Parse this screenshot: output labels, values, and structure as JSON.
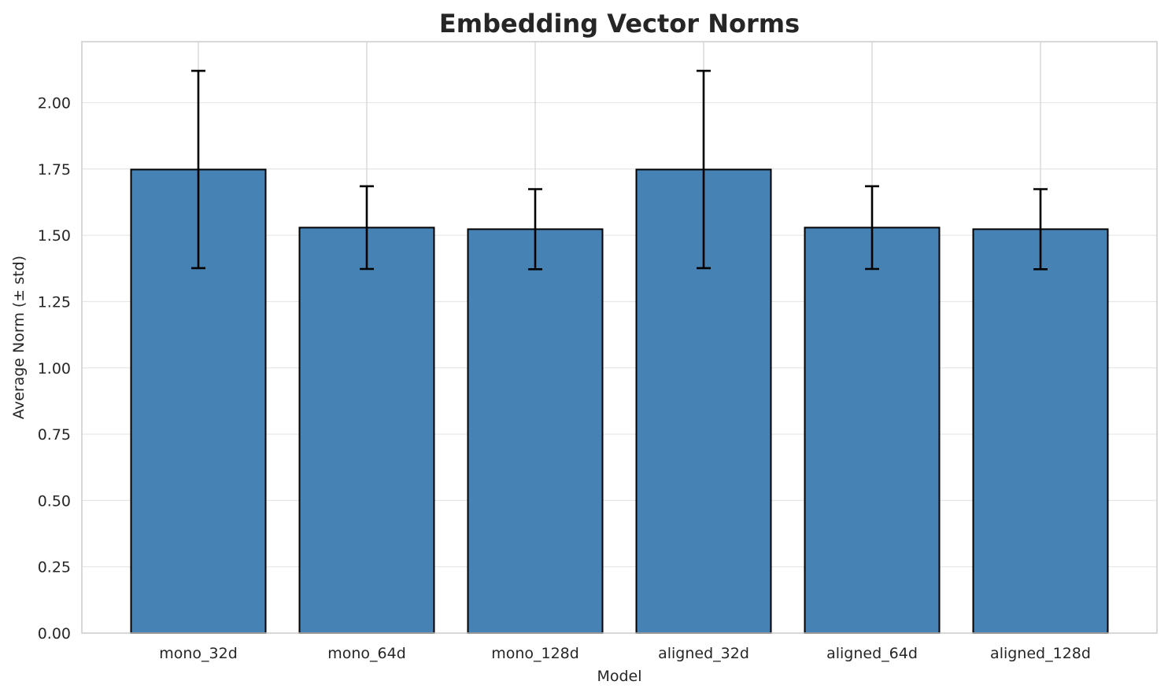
{
  "chart_data": {
    "type": "bar",
    "title": "Embedding Vector Norms",
    "xlabel": "Model",
    "ylabel": "Average Norm (± std)",
    "categories": [
      "mono_32d",
      "mono_64d",
      "mono_128d",
      "aligned_32d",
      "aligned_64d",
      "aligned_128d"
    ],
    "values": [
      1.748,
      1.529,
      1.523,
      1.748,
      1.529,
      1.523
    ],
    "error": [
      0.372,
      0.156,
      0.151,
      0.372,
      0.156,
      0.151
    ],
    "ylim": [
      0,
      2.23
    ],
    "yticks": [
      "0.00",
      "0.25",
      "0.50",
      "0.75",
      "1.00",
      "1.25",
      "1.50",
      "1.75",
      "2.00"
    ],
    "grid": true,
    "colors": {
      "bar": "#4682b4",
      "edge": "#000000",
      "error": "#000000",
      "grid": "#e6e6e6",
      "frame": "#cccccc"
    }
  }
}
